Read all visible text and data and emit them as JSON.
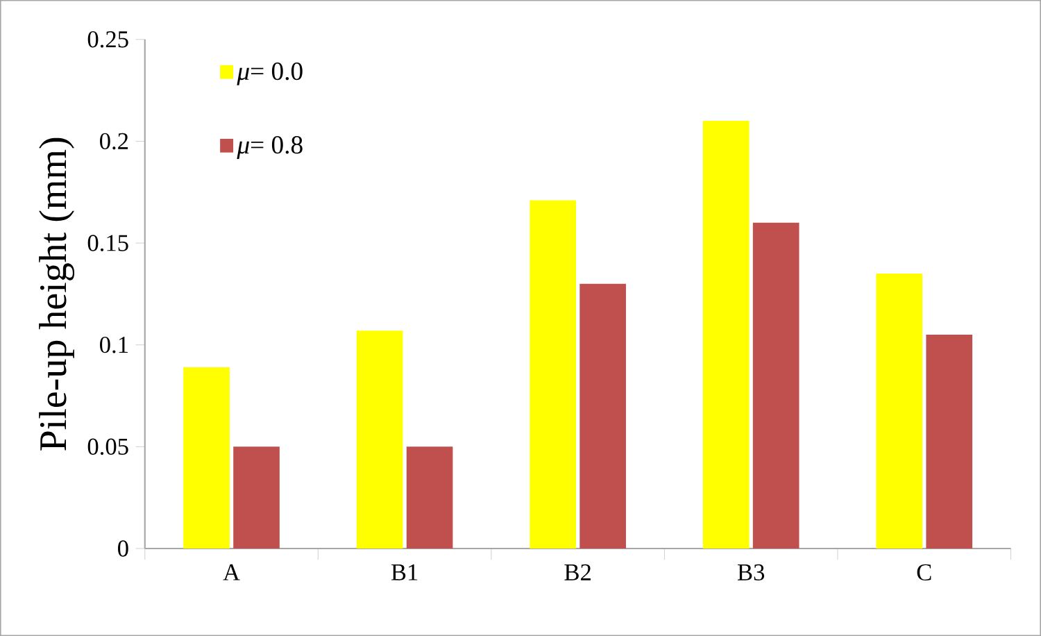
{
  "chart_data": {
    "type": "bar",
    "ylabel": "Pile-up height (mm)",
    "categories": [
      "A",
      "B1",
      "B2",
      "B3",
      "C"
    ],
    "series": [
      {
        "name": "*μ*= 0.0",
        "color": "#ffff00",
        "values": [
          0.089,
          0.107,
          0.171,
          0.21,
          0.135
        ]
      },
      {
        "name": "*μ*= 0.8",
        "color": "#c0504d",
        "values": [
          0.05,
          0.05,
          0.13,
          0.16,
          0.105
        ]
      }
    ],
    "ylim": [
      0,
      0.25
    ],
    "yticks": [
      0,
      0.05,
      0.1,
      0.15,
      0.2,
      0.25
    ],
    "grid": false,
    "legend": "top left"
  }
}
